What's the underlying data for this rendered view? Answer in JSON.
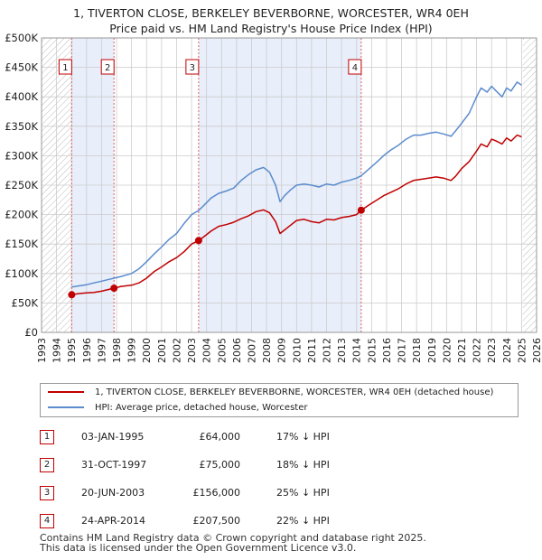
{
  "title": {
    "line1": "1, TIVERTON CLOSE, BERKELEY BEVERBORNE, WORCESTER, WR4 0EH",
    "line2": "Price paid vs. HM Land Registry's House Price Index (HPI)"
  },
  "chart_data": {
    "type": "line",
    "title": "Price paid vs. HM Land Registry's House Price Index (HPI)",
    "xlabel": "",
    "ylabel": "",
    "xlim": [
      1993.0,
      2026.0
    ],
    "ylim": [
      0,
      500000
    ],
    "grid": true,
    "x_ticks": [
      "1993",
      "1994",
      "1995",
      "1996",
      "1997",
      "1998",
      "1999",
      "2000",
      "2001",
      "2002",
      "2003",
      "2004",
      "2005",
      "2006",
      "2007",
      "2008",
      "2009",
      "2010",
      "2011",
      "2012",
      "2013",
      "2014",
      "2015",
      "2016",
      "2017",
      "2018",
      "2019",
      "2020",
      "2021",
      "2022",
      "2023",
      "2024",
      "2025",
      "2026"
    ],
    "y_ticks": [
      "£0",
      "£50K",
      "£100K",
      "£150K",
      "£200K",
      "£250K",
      "£300K",
      "£350K",
      "£400K",
      "£450K",
      "£500K"
    ],
    "legend_position": "bottom",
    "hatched_ranges": [
      [
        1993.0,
        1995.0
      ],
      [
        2025.08,
        2026.0
      ]
    ],
    "shaded_spans": [
      [
        1995.01,
        1997.83
      ],
      [
        2003.47,
        2014.31
      ]
    ],
    "series": [
      {
        "name": "1, TIVERTON CLOSE, BERKELEY BEVERBORNE, WORCESTER, WR4 0EH (detached house)",
        "color": "#c00000",
        "x": [
          1995.01,
          1995.5,
          1996.0,
          1996.5,
          1997.0,
          1997.5,
          1997.83,
          1998.3,
          1999.0,
          1999.5,
          2000.0,
          2000.5,
          2001.0,
          2001.5,
          2002.0,
          2002.5,
          2003.0,
          2003.47,
          2003.8,
          2004.3,
          2004.8,
          2005.3,
          2005.8,
          2006.3,
          2006.8,
          2007.3,
          2007.8,
          2008.2,
          2008.6,
          2008.9,
          2009.2,
          2009.6,
          2010.0,
          2010.5,
          2011.0,
          2011.5,
          2012.0,
          2012.5,
          2013.0,
          2013.5,
          2014.0,
          2014.31,
          2014.8,
          2015.3,
          2015.8,
          2016.3,
          2016.8,
          2017.3,
          2017.8,
          2018.3,
          2018.8,
          2019.3,
          2019.8,
          2020.3,
          2020.6,
          2021.0,
          2021.5,
          2022.0,
          2022.3,
          2022.7,
          2023.0,
          2023.3,
          2023.7,
          2024.0,
          2024.3,
          2024.7,
          2025.0
        ],
        "values": [
          64000,
          66000,
          67000,
          68000,
          70000,
          73000,
          75000,
          78000,
          80000,
          84000,
          92000,
          103000,
          111000,
          120000,
          127000,
          137000,
          150000,
          156000,
          162000,
          172000,
          180000,
          183000,
          187000,
          193000,
          198000,
          205000,
          208000,
          203000,
          188000,
          168000,
          174000,
          182000,
          190000,
          192000,
          188000,
          186000,
          192000,
          191000,
          195000,
          197000,
          200000,
          207500,
          216000,
          224000,
          232000,
          238000,
          244000,
          252000,
          258000,
          260000,
          262000,
          264000,
          262000,
          258000,
          265000,
          278000,
          290000,
          308000,
          320000,
          315000,
          328000,
          325000,
          320000,
          330000,
          325000,
          335000,
          332000
        ]
      },
      {
        "name": "HPI: Average price, detached house, Worcester",
        "color": "#5b8ccc",
        "x": [
          1995.01,
          1995.5,
          1996.0,
          1996.5,
          1997.0,
          1997.5,
          1997.83,
          1998.3,
          1999.0,
          1999.5,
          2000.0,
          2000.5,
          2001.0,
          2001.5,
          2002.0,
          2002.5,
          2003.0,
          2003.47,
          2003.8,
          2004.3,
          2004.8,
          2005.3,
          2005.8,
          2006.3,
          2006.8,
          2007.3,
          2007.8,
          2008.2,
          2008.6,
          2008.9,
          2009.2,
          2009.6,
          2010.0,
          2010.5,
          2011.0,
          2011.5,
          2012.0,
          2012.5,
          2013.0,
          2013.5,
          2014.0,
          2014.31,
          2014.8,
          2015.3,
          2015.8,
          2016.3,
          2016.8,
          2017.3,
          2017.8,
          2018.3,
          2018.8,
          2019.3,
          2019.8,
          2020.3,
          2020.6,
          2021.0,
          2021.5,
          2022.0,
          2022.3,
          2022.7,
          2023.0,
          2023.3,
          2023.7,
          2024.0,
          2024.3,
          2024.7,
          2025.0
        ],
        "values": [
          77000,
          79000,
          81000,
          84000,
          87000,
          90000,
          92000,
          95000,
          100000,
          108000,
          120000,
          133000,
          145000,
          158000,
          168000,
          185000,
          200000,
          207000,
          215000,
          228000,
          236000,
          240000,
          245000,
          258000,
          268000,
          276000,
          280000,
          272000,
          250000,
          222000,
          232000,
          242000,
          250000,
          252000,
          250000,
          247000,
          252000,
          250000,
          255000,
          258000,
          262000,
          266000,
          277000,
          288000,
          300000,
          310000,
          318000,
          328000,
          335000,
          335000,
          338000,
          340000,
          337000,
          333000,
          342000,
          355000,
          372000,
          400000,
          415000,
          408000,
          418000,
          410000,
          400000,
          415000,
          410000,
          425000,
          420000
        ]
      }
    ],
    "annotations": [
      {
        "label": "1",
        "x": 1995.01,
        "price": 64000
      },
      {
        "label": "2",
        "x": 1997.83,
        "price": 75000
      },
      {
        "label": "3",
        "x": 2003.47,
        "price": 156000
      },
      {
        "label": "4",
        "x": 2014.31,
        "price": 207500
      }
    ]
  },
  "legend": {
    "items": [
      {
        "label": "1, TIVERTON CLOSE, BERKELEY BEVERBORNE, WORCESTER, WR4 0EH (detached house)",
        "color": "#c00000"
      },
      {
        "label": "HPI: Average price, detached house, Worcester",
        "color": "#5b8ccc"
      }
    ]
  },
  "sales": [
    {
      "num": "1",
      "date": "03-JAN-1995",
      "price": "£64,000",
      "hpi": "17% ↓ HPI"
    },
    {
      "num": "2",
      "date": "31-OCT-1997",
      "price": "£75,000",
      "hpi": "18% ↓ HPI"
    },
    {
      "num": "3",
      "date": "20-JUN-2003",
      "price": "£156,000",
      "hpi": "25% ↓ HPI"
    },
    {
      "num": "4",
      "date": "24-APR-2014",
      "price": "£207,500",
      "hpi": "22% ↓ HPI"
    }
  ],
  "footer": {
    "line1": "Contains HM Land Registry data © Crown copyright and database right 2025.",
    "line2": "This data is licensed under the Open Government Licence v3.0."
  },
  "colors": {
    "property": "#c00000",
    "hpi": "#5b8ccc",
    "shade": "#e8eefa",
    "grid": "#cccccc",
    "vline": "#e06060"
  }
}
